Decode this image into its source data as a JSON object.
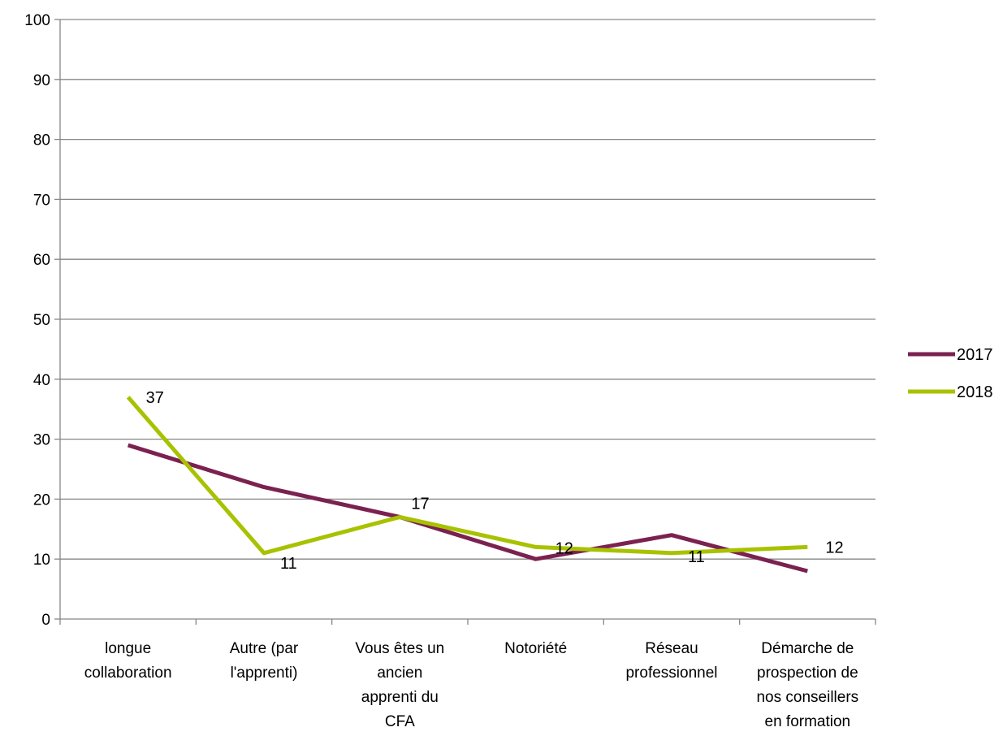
{
  "chart_data": {
    "type": "line",
    "title": "",
    "xlabel": "",
    "ylabel": "",
    "ylim": [
      0,
      100
    ],
    "ytick_step": 10,
    "grid": true,
    "legend_position": "right",
    "categories": [
      [
        "longue",
        "collaboration"
      ],
      [
        "Autre (par",
        "l'apprenti)"
      ],
      [
        "Vous êtes un",
        "ancien",
        "apprenti du",
        "CFA"
      ],
      [
        "Notoriété"
      ],
      [
        "Réseau",
        "professionnel"
      ],
      [
        "Démarche de",
        "prospection de",
        "nos conseillers",
        "en formation"
      ]
    ],
    "series": [
      {
        "name": "2017",
        "color": "#7b2150",
        "values": [
          29,
          22,
          17,
          10,
          14,
          8
        ],
        "data_labels": []
      },
      {
        "name": "2018",
        "color": "#a8c200",
        "values": [
          37,
          11,
          17,
          12,
          11,
          12
        ],
        "data_labels": [
          "37",
          "11",
          "17",
          "12",
          "11",
          "12"
        ]
      }
    ]
  }
}
